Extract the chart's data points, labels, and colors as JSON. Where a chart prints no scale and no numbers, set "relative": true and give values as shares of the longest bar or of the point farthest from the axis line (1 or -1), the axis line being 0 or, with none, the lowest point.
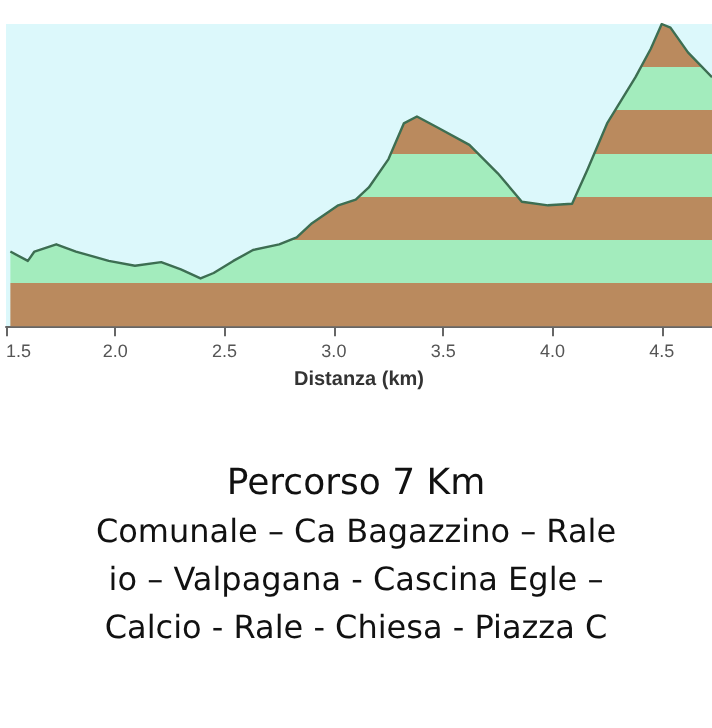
{
  "chart_data": {
    "type": "area",
    "relative": true,
    "xlabel": "Distanza (km)",
    "x": [
      1.52,
      1.6,
      1.63,
      1.73,
      1.82,
      1.97,
      2.09,
      2.21,
      2.3,
      2.39,
      2.45,
      2.54,
      2.63,
      2.75,
      2.83,
      2.9,
      3.02,
      3.1,
      3.16,
      3.25,
      3.32,
      3.38,
      3.47,
      3.62,
      3.75,
      3.86,
      3.98,
      4.09,
      4.16,
      4.25,
      4.38,
      4.45,
      4.5,
      4.54,
      4.62,
      4.73
    ],
    "series": [
      {
        "color": "#3d6e52",
        "values": [
          0.247,
          0.216,
          0.247,
          0.271,
          0.247,
          0.216,
          0.2,
          0.212,
          0.188,
          0.158,
          0.176,
          0.216,
          0.252,
          0.271,
          0.294,
          0.341,
          0.4,
          0.419,
          0.459,
          0.553,
          0.671,
          0.694,
          0.659,
          0.6,
          0.506,
          0.412,
          0.4,
          0.405,
          0.518,
          0.671,
          0.824,
          0.918,
          1.0,
          0.988,
          0.906,
          0.824
        ]
      }
    ],
    "xlim": [
      1.5,
      4.73
    ],
    "xticks": [
      1.5,
      {
        "value": 2,
        "label": "2.0"
      },
      2.5,
      {
        "value": 3,
        "label": "3.0"
      },
      3.5,
      {
        "value": 4,
        "label": "4.0"
      },
      4.5
    ],
    "grid": false,
    "annotations": [
      "Percorso 7 Km",
      "Comunale – Ca Bagazzino – Rale",
      "io – Valpagana - Cascina Egle –",
      "Calcio - Rale - Chiesa - Piazza C"
    ]
  }
}
